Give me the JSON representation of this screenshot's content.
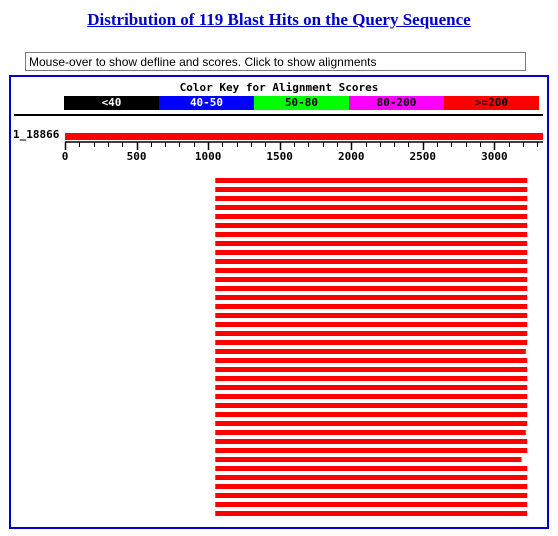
{
  "title": "Distribution of 119 Blast Hits on the Query Sequence",
  "defline_box": {
    "text": "Mouse-over to show defline and scores. Click to show alignments"
  },
  "color_key": {
    "title": "Color Key for Alignment Scores",
    "bins": [
      {
        "label": "<40",
        "color": "#000000",
        "text_color": "#ffffff"
      },
      {
        "label": "40-50",
        "color": "#0000ff",
        "text_color": "#ffffff"
      },
      {
        "label": "50-80",
        "color": "#00ff00",
        "text_color": "#000000"
      },
      {
        "label": "80-200",
        "color": "#ff00ff",
        "text_color": "#000000"
      },
      {
        "label": ">=200",
        "color": "#ff0000",
        "text_color": "#000000"
      }
    ]
  },
  "query": {
    "label": "1_18866",
    "length": 3340,
    "color": "#ff0000"
  },
  "axis": {
    "ticks": [
      0,
      500,
      1000,
      1500,
      2000,
      2500,
      3000
    ],
    "minor_step": 100,
    "max": 3340
  },
  "hits": {
    "count": 38,
    "color": "#ff0000",
    "segments": [
      {
        "start": 1050,
        "end": 3230
      },
      {
        "start": 1050,
        "end": 3230
      },
      {
        "start": 1050,
        "end": 3230
      },
      {
        "start": 1050,
        "end": 3230
      },
      {
        "start": 1050,
        "end": 3230
      },
      {
        "start": 1050,
        "end": 3230
      },
      {
        "start": 1050,
        "end": 3230
      },
      {
        "start": 1050,
        "end": 3230
      },
      {
        "start": 1050,
        "end": 3230
      },
      {
        "start": 1050,
        "end": 3230
      },
      {
        "start": 1050,
        "end": 3230
      },
      {
        "start": 1050,
        "end": 3230
      },
      {
        "start": 1050,
        "end": 3230
      },
      {
        "start": 1050,
        "end": 3230
      },
      {
        "start": 1050,
        "end": 3230
      },
      {
        "start": 1050,
        "end": 3230
      },
      {
        "start": 1050,
        "end": 3230
      },
      {
        "start": 1050,
        "end": 3230
      },
      {
        "start": 1050,
        "end": 3230
      },
      {
        "start": 1050,
        "end": 3220
      },
      {
        "start": 1050,
        "end": 3230
      },
      {
        "start": 1050,
        "end": 3230
      },
      {
        "start": 1050,
        "end": 3230
      },
      {
        "start": 1050,
        "end": 3230
      },
      {
        "start": 1050,
        "end": 3230
      },
      {
        "start": 1050,
        "end": 3230
      },
      {
        "start": 1050,
        "end": 3230
      },
      {
        "start": 1050,
        "end": 3230
      },
      {
        "start": 1050,
        "end": 3220
      },
      {
        "start": 1050,
        "end": 3230
      },
      {
        "start": 1050,
        "end": 3230
      },
      {
        "start": 1050,
        "end": 3190
      },
      {
        "start": 1050,
        "end": 3230
      },
      {
        "start": 1050,
        "end": 3230
      },
      {
        "start": 1050,
        "end": 3230
      },
      {
        "start": 1050,
        "end": 3230
      },
      {
        "start": 1050,
        "end": 3230
      },
      {
        "start": 1050,
        "end": 3230
      }
    ]
  }
}
